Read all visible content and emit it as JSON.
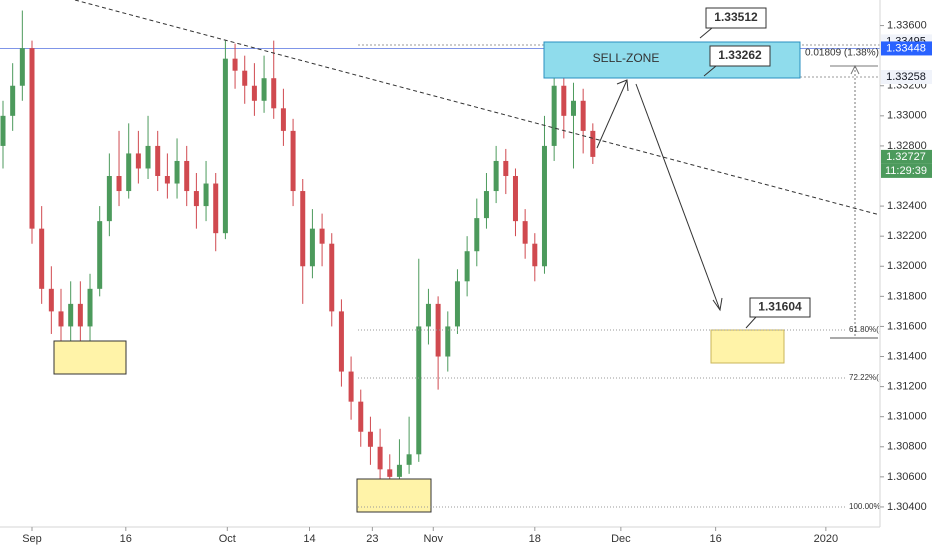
{
  "chart_data": {
    "type": "candlestick",
    "up_color": "#4c9a5c",
    "down_color": "#d0494f",
    "x": [
      0,
      1,
      2,
      3,
      4,
      5,
      6,
      7,
      8,
      9,
      10,
      11,
      12,
      13,
      14,
      15,
      16,
      17,
      18,
      19,
      20,
      21,
      22,
      23,
      24,
      25,
      26,
      27,
      28,
      29,
      30,
      31,
      32,
      33,
      34,
      35,
      36,
      37,
      38,
      39,
      40,
      41,
      42,
      43,
      44,
      45,
      46,
      47,
      48,
      49,
      50,
      51,
      52,
      53,
      54,
      55,
      56,
      57,
      58,
      59,
      60,
      61
    ],
    "open": [
      1.328,
      1.33,
      1.332,
      1.3345,
      1.3225,
      1.3185,
      1.317,
      1.316,
      1.3175,
      1.316,
      1.3185,
      1.323,
      1.326,
      1.325,
      1.3275,
      1.3265,
      1.328,
      1.326,
      1.3255,
      1.327,
      1.325,
      1.324,
      1.3255,
      1.3222,
      1.3338,
      1.333,
      1.332,
      1.331,
      1.3325,
      1.3305,
      1.329,
      1.325,
      1.32,
      1.3225,
      1.3215,
      1.317,
      1.313,
      1.311,
      1.309,
      1.308,
      1.3065,
      1.306,
      1.3068,
      1.3075,
      1.316,
      1.3175,
      1.314,
      1.316,
      1.319,
      1.321,
      1.3232,
      1.325,
      1.327,
      1.326,
      1.323,
      1.3215,
      1.32,
      1.328,
      1.332,
      1.33,
      1.331,
      1.329
    ],
    "high": [
      1.331,
      1.3335,
      1.337,
      1.335,
      1.324,
      1.32,
      1.3185,
      1.319,
      1.319,
      1.3195,
      1.324,
      1.3275,
      1.329,
      1.3295,
      1.329,
      1.33,
      1.329,
      1.3275,
      1.3285,
      1.328,
      1.3262,
      1.327,
      1.3262,
      1.335,
      1.3348,
      1.334,
      1.3335,
      1.334,
      1.335,
      1.3318,
      1.3298,
      1.3258,
      1.3238,
      1.3235,
      1.3222,
      1.3178,
      1.314,
      1.3118,
      1.31,
      1.3092,
      1.3075,
      1.3085,
      1.31,
      1.3205,
      1.3185,
      1.318,
      1.317,
      1.3198,
      1.322,
      1.3245,
      1.3262,
      1.328,
      1.3278,
      1.3265,
      1.3238,
      1.3222,
      1.33,
      1.333,
      1.333,
      1.3322,
      1.3318,
      1.3295
    ],
    "low": [
      1.3265,
      1.329,
      1.331,
      1.3215,
      1.3175,
      1.3155,
      1.3145,
      1.314,
      1.3148,
      1.315,
      1.318,
      1.322,
      1.324,
      1.3245,
      1.3255,
      1.3258,
      1.325,
      1.3245,
      1.3245,
      1.324,
      1.3225,
      1.323,
      1.321,
      1.3218,
      1.3318,
      1.3308,
      1.33,
      1.3302,
      1.3298,
      1.328,
      1.324,
      1.3175,
      1.3192,
      1.32,
      1.316,
      1.312,
      1.3098,
      1.308,
      1.3068,
      1.3055,
      1.305,
      1.3052,
      1.3062,
      1.307,
      1.3148,
      1.3118,
      1.313,
      1.3155,
      1.318,
      1.32,
      1.3225,
      1.3242,
      1.3248,
      1.322,
      1.3205,
      1.319,
      1.3195,
      1.327,
      1.3285,
      1.3265,
      1.3275,
      1.3268
    ],
    "close": [
      1.33,
      1.332,
      1.3345,
      1.3225,
      1.3185,
      1.317,
      1.316,
      1.3175,
      1.316,
      1.3185,
      1.323,
      1.326,
      1.325,
      1.3275,
      1.3265,
      1.328,
      1.326,
      1.3255,
      1.327,
      1.325,
      1.324,
      1.3255,
      1.3222,
      1.3338,
      1.333,
      1.332,
      1.331,
      1.3325,
      1.3305,
      1.329,
      1.325,
      1.32,
      1.3225,
      1.3215,
      1.317,
      1.313,
      1.311,
      1.309,
      1.308,
      1.3065,
      1.306,
      1.3068,
      1.3075,
      1.316,
      1.3175,
      1.314,
      1.316,
      1.319,
      1.321,
      1.3232,
      1.325,
      1.327,
      1.326,
      1.323,
      1.3215,
      1.32,
      1.328,
      1.332,
      1.33,
      1.331,
      1.329,
      1.32727
    ],
    "xlim": [
      -0.31,
      90.7
    ],
    "xticks": [
      {
        "value": 3.0,
        "label": "Sep"
      },
      {
        "value": 12.7,
        "label": "16"
      },
      {
        "value": 23.2,
        "label": "Oct"
      },
      {
        "value": 31.7,
        "label": "14"
      },
      {
        "value": 38.2,
        "label": "23"
      },
      {
        "value": 44.5,
        "label": "Nov"
      },
      {
        "value": 55.0,
        "label": "18"
      },
      {
        "value": 63.9,
        "label": "Dec"
      },
      {
        "value": 73.7,
        "label": "16"
      },
      {
        "value": 85.1,
        "label": "2020"
      }
    ],
    "ylim": [
      1.3028,
      1.3377
    ],
    "yticks": [
      {
        "value": 1.336,
        "label": "1.33600"
      },
      {
        "value": 1.332,
        "label": "1.33200"
      },
      {
        "value": 1.33,
        "label": "1.33000"
      },
      {
        "value": 1.328,
        "label": "1.32800"
      },
      {
        "value": 1.324,
        "label": "1.32400"
      },
      {
        "value": 1.322,
        "label": "1.32200"
      },
      {
        "value": 1.32,
        "label": "1.32000"
      },
      {
        "value": 1.318,
        "label": "1.31800"
      },
      {
        "value": 1.316,
        "label": "1.31600"
      },
      {
        "value": 1.314,
        "label": "1.31400"
      },
      {
        "value": 1.312,
        "label": "1.31200"
      },
      {
        "value": 1.31,
        "label": "1.31000"
      },
      {
        "value": 1.308,
        "label": "1.30800"
      },
      {
        "value": 1.306,
        "label": "1.30600"
      },
      {
        "value": 1.304,
        "label": "1.30400"
      }
    ],
    "price_labels": [
      {
        "value": 1.33495,
        "label": "1.33495",
        "color": "#f0f3fa",
        "text_color": "#131722"
      },
      {
        "value": 1.33448,
        "label": "1.33448",
        "color": "#2962ff",
        "text_color": "#ffffff"
      },
      {
        "value": 1.33258,
        "label": "1.33258",
        "color": "#f0f3fa",
        "text_color": "#131722"
      },
      {
        "value": 1.32727,
        "label": "1.32727",
        "color": "#4c9a5c",
        "text_color": "#ffffff"
      }
    ],
    "countdown": "11:29:39",
    "horizontal_line": {
      "value": 1.33448,
      "color": "#7f95e8"
    },
    "zone_label": "SELL-ZONE",
    "callouts": [
      "1.33512",
      "1.33262",
      "1.31604"
    ],
    "measure_label": "0.01809 (1.38%) 1",
    "fib_labels": [
      "61.80%(1.3",
      "72.22%(1.3",
      "100.00%(1."
    ]
  }
}
